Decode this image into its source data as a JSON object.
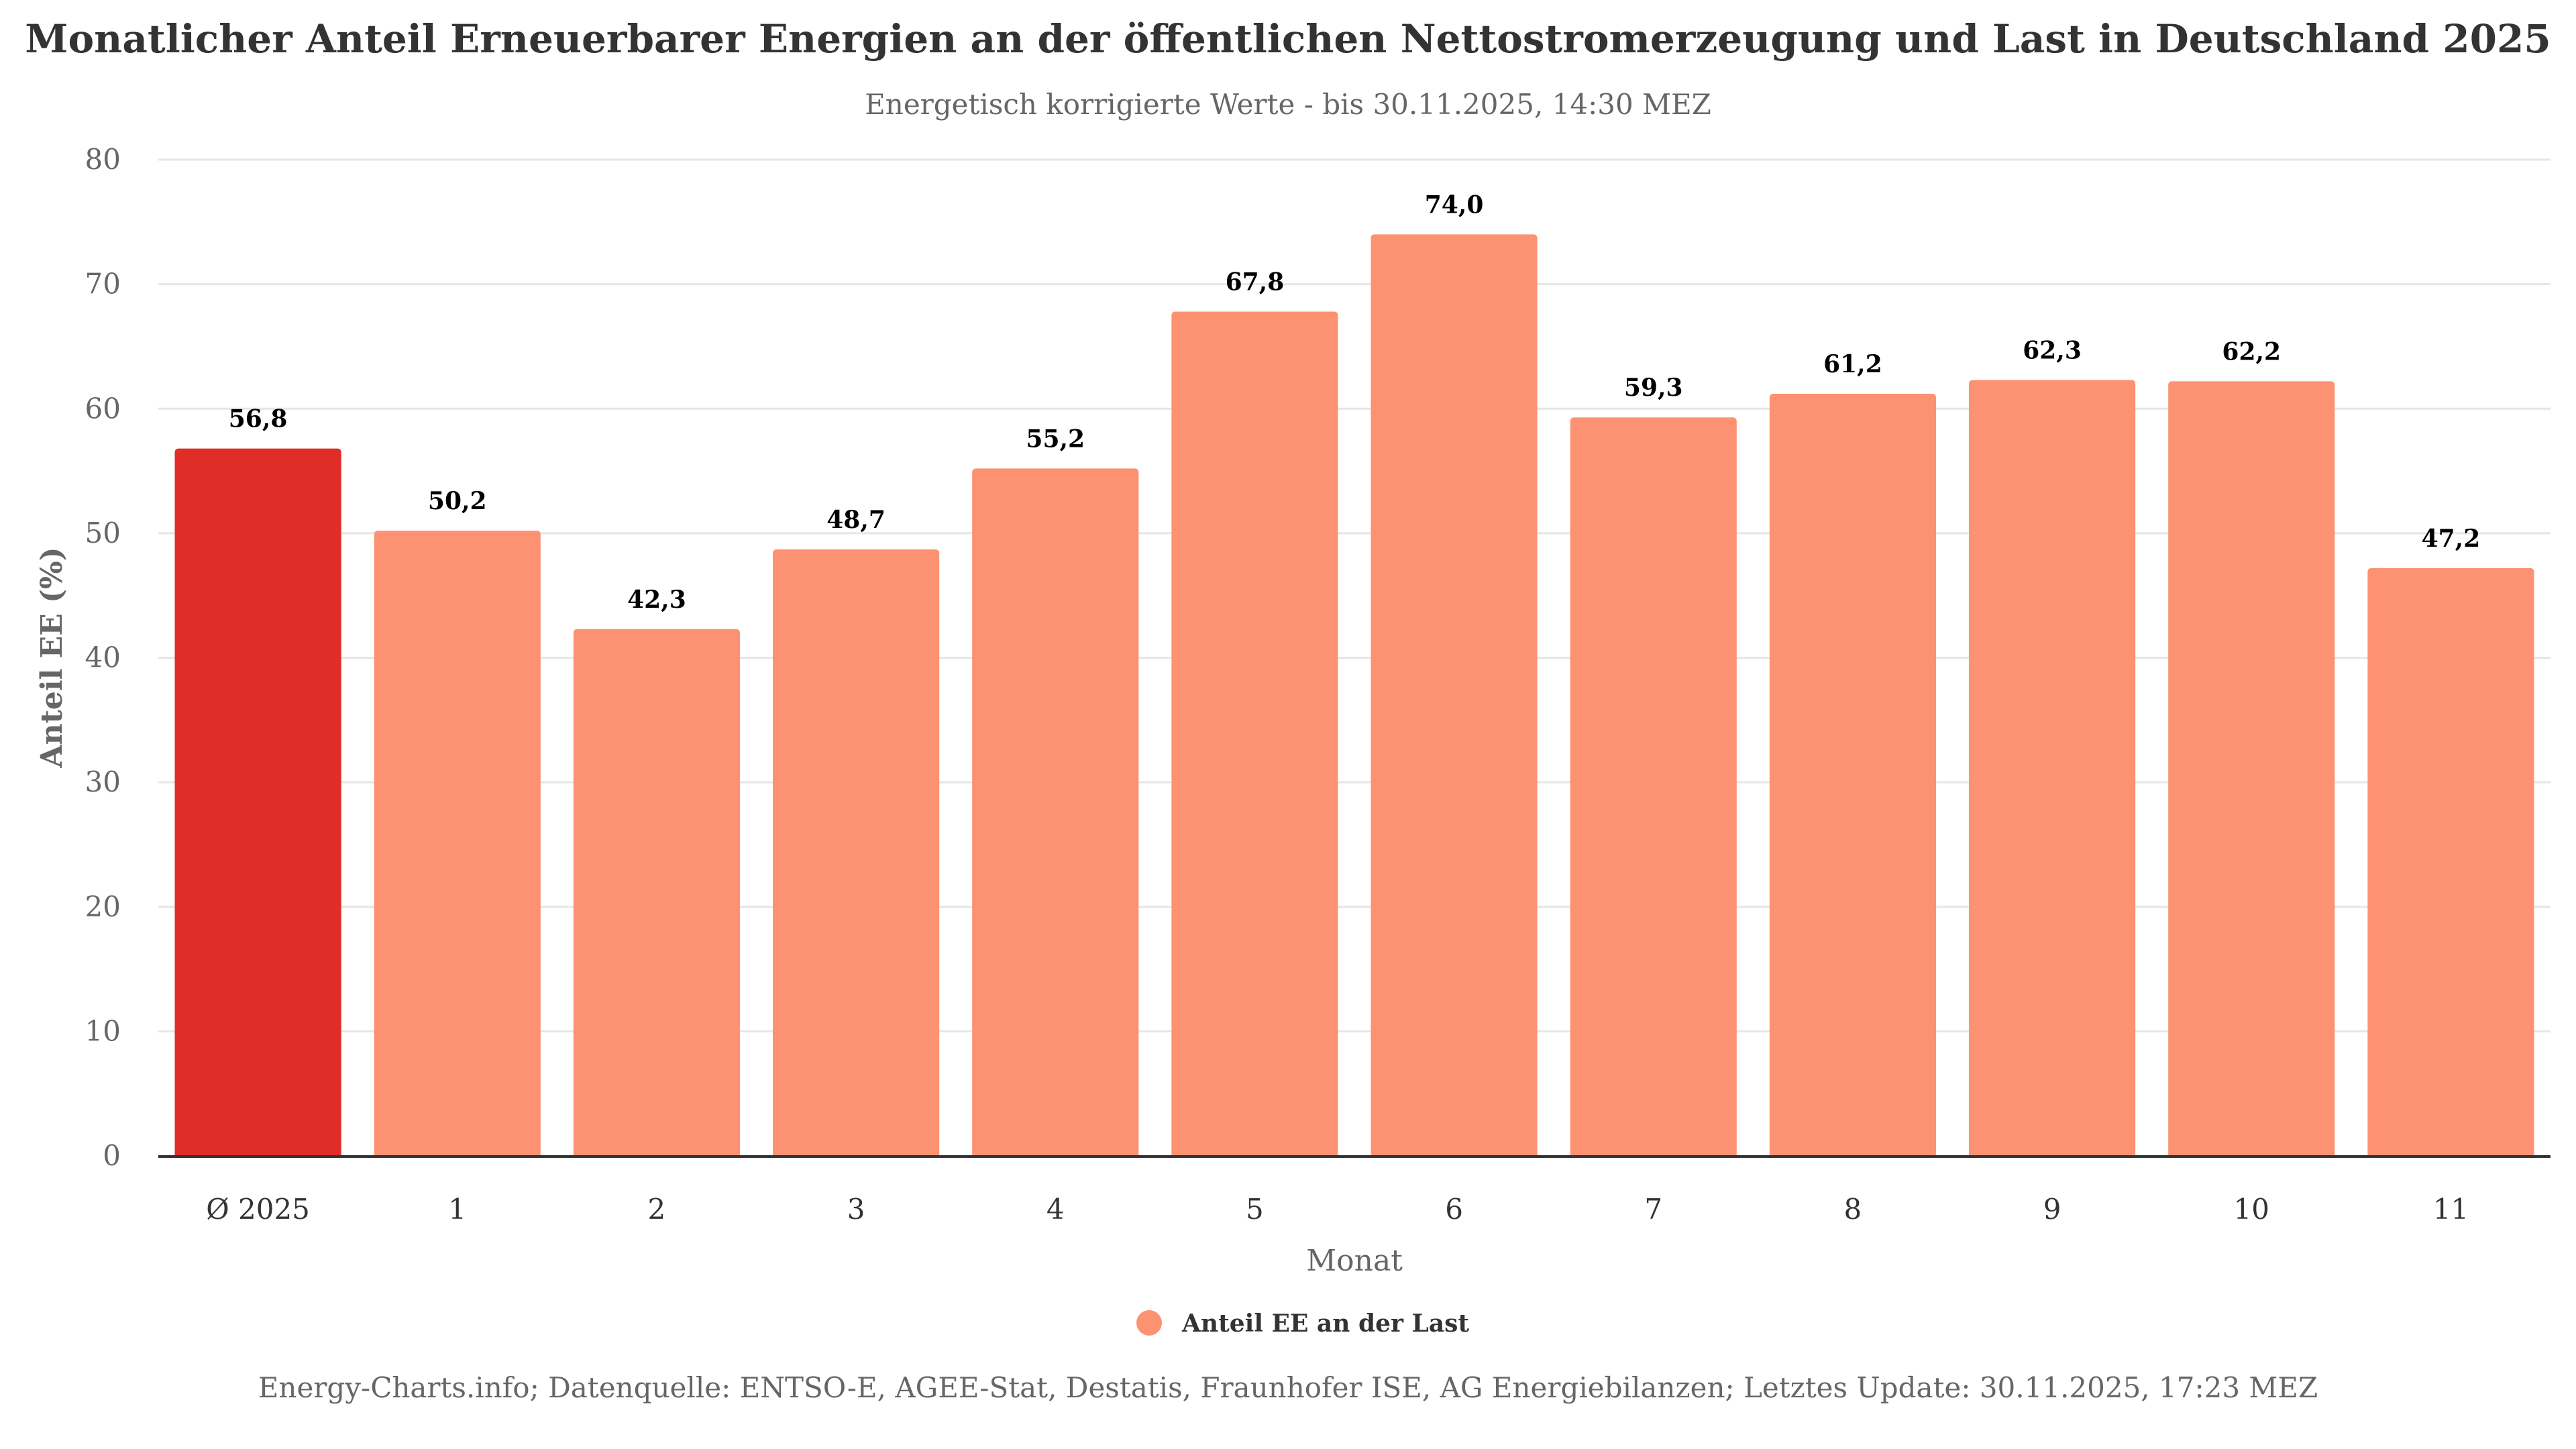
{
  "chart_data": {
    "type": "bar",
    "title": "Monatlicher Anteil Erneuerbarer Energien an der öffentlichen Nettostromerzeugung und Last in Deutschland 2025",
    "subtitle": "Energetisch korrigierte Werte - bis 30.11.2025, 14:30 MEZ",
    "xlabel": "Monat",
    "ylabel": "Anteil EE (%)",
    "ylim": [
      0,
      80
    ],
    "yticks": [
      0,
      10,
      20,
      30,
      40,
      50,
      60,
      70,
      80
    ],
    "grid": true,
    "categories": [
      "Ø 2025",
      "1",
      "2",
      "3",
      "4",
      "5",
      "6",
      "7",
      "8",
      "9",
      "10",
      "11"
    ],
    "series": [
      {
        "name": "Anteil EE an der Last",
        "values": [
          56.8,
          50.2,
          42.3,
          48.7,
          55.2,
          67.8,
          74.0,
          59.3,
          61.2,
          62.3,
          62.2,
          47.2
        ],
        "data_labels": [
          "56,8",
          "50,2",
          "42,3",
          "48,7",
          "55,2",
          "67,8",
          "74,0",
          "59,3",
          "61,2",
          "62,3",
          "62,2",
          "47,2"
        ],
        "color": "#FC9272",
        "highlight_color": "#E12D27",
        "highlight_index": 0
      }
    ],
    "legend": {
      "position": "bottom-center",
      "entries": [
        "Anteil EE an der Last"
      ]
    },
    "footer": "Energy-Charts.info; Datenquelle: ENTSO-E, AGEE-Stat, Destatis, Fraunhofer ISE, AG Energiebilanzen; Letztes Update: 30.11.2025, 17:23 MEZ"
  },
  "colors": {
    "grid": "#E6E6E6",
    "axis": "#333333"
  }
}
